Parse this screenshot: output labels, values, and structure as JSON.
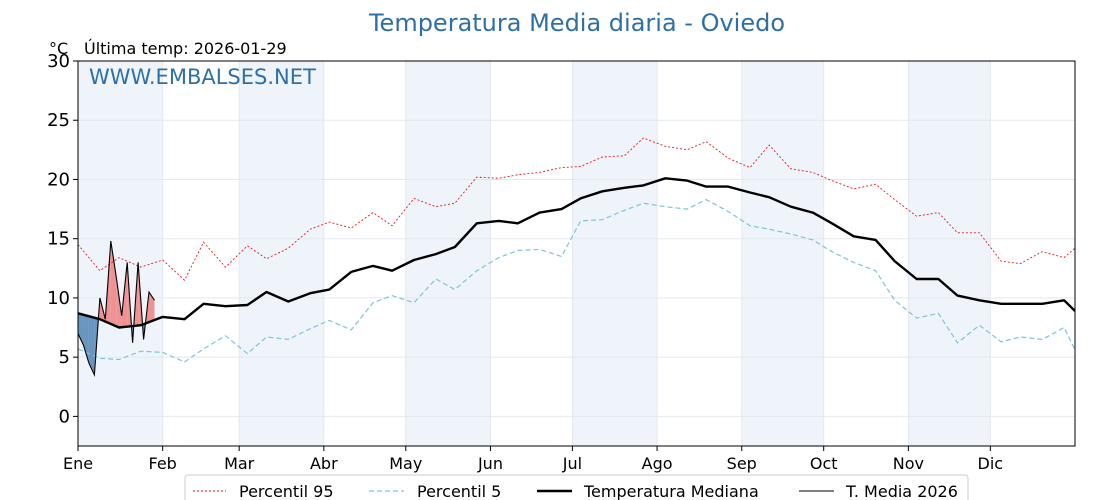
{
  "chart_data": {
    "type": "line",
    "title": "Temperatura Media diaria - Oviedo",
    "unit_label": "°C",
    "last_temp_label": "Última temp: 2026-01-29",
    "watermark": "WWW.EMBALSES.NET",
    "ylim": [
      -2.5,
      30
    ],
    "yticks": [
      0,
      5,
      10,
      15,
      20,
      25,
      30
    ],
    "xlim": [
      0,
      365
    ],
    "month_labels": [
      "Ene",
      "Feb",
      "Mar",
      "Abr",
      "May",
      "Jun",
      "Jul",
      "Ago",
      "Sep",
      "Oct",
      "Nov",
      "Dic"
    ],
    "month_starts": [
      0,
      31,
      59,
      90,
      120,
      151,
      181,
      212,
      243,
      273,
      304,
      334
    ],
    "grid": true,
    "legend_placement": "bottom",
    "colors": {
      "p95": "#e31a1c",
      "p5": "#7fc4d6",
      "median": "#000000",
      "current": "#000000",
      "above_fill": "#f08080",
      "below_fill": "#4f86b5",
      "band": "#eef4fa",
      "title": "#2f6fa7"
    },
    "series": [
      {
        "name": "Percentil 95",
        "x": [
          0,
          8,
          15,
          23,
          31,
          39,
          46,
          54,
          62,
          69,
          77,
          85,
          92,
          100,
          108,
          115,
          123,
          131,
          138,
          146,
          154,
          161,
          169,
          177,
          184,
          192,
          200,
          207,
          215,
          223,
          230,
          238,
          246,
          253,
          261,
          269,
          276,
          284,
          292,
          299,
          307,
          315,
          322,
          330,
          338,
          345,
          353,
          361,
          365
        ],
        "values": [
          14.5,
          12.3,
          13.4,
          12.6,
          13.2,
          11.5,
          14.7,
          12.6,
          14.4,
          13.3,
          14.2,
          15.8,
          16.4,
          15.9,
          17.2,
          16.1,
          18.4,
          17.7,
          18.0,
          20.2,
          20.1,
          20.4,
          20.6,
          21.0,
          21.1,
          21.9,
          22.0,
          23.5,
          22.8,
          22.5,
          23.2,
          21.8,
          21.0,
          22.9,
          20.9,
          20.6,
          19.9,
          19.2,
          19.6,
          18.3,
          16.9,
          17.2,
          15.5,
          15.5,
          13.1,
          12.9,
          13.9,
          13.4,
          14.2
        ]
      },
      {
        "name": "Percentil 5",
        "x": [
          0,
          8,
          15,
          23,
          31,
          39,
          46,
          54,
          62,
          69,
          77,
          85,
          92,
          100,
          108,
          115,
          123,
          131,
          138,
          146,
          154,
          161,
          169,
          177,
          184,
          192,
          200,
          207,
          215,
          223,
          230,
          238,
          246,
          253,
          261,
          269,
          276,
          284,
          292,
          299,
          307,
          315,
          322,
          330,
          338,
          345,
          353,
          361,
          365
        ],
        "values": [
          5.7,
          4.9,
          4.8,
          5.5,
          5.4,
          4.6,
          5.7,
          6.8,
          5.3,
          6.7,
          6.5,
          7.4,
          8.1,
          7.3,
          9.6,
          10.2,
          9.6,
          11.6,
          10.7,
          12.3,
          13.4,
          14.0,
          14.1,
          13.5,
          16.5,
          16.6,
          17.4,
          18.0,
          17.7,
          17.5,
          18.3,
          17.3,
          16.1,
          15.8,
          15.4,
          14.9,
          13.9,
          13.0,
          12.3,
          9.8,
          8.3,
          8.7,
          6.2,
          7.7,
          6.3,
          6.7,
          6.5,
          7.5,
          5.6
        ]
      },
      {
        "name": "Temperatura Mediana",
        "x": [
          0,
          8,
          15,
          23,
          31,
          39,
          46,
          54,
          62,
          69,
          77,
          85,
          92,
          100,
          108,
          115,
          123,
          131,
          138,
          146,
          154,
          161,
          169,
          177,
          184,
          192,
          200,
          207,
          215,
          223,
          230,
          238,
          246,
          253,
          261,
          269,
          276,
          284,
          292,
          299,
          307,
          315,
          322,
          330,
          338,
          345,
          353,
          361,
          365
        ],
        "values": [
          8.7,
          8.2,
          7.5,
          7.7,
          8.4,
          8.2,
          9.5,
          9.3,
          9.4,
          10.5,
          9.7,
          10.4,
          10.7,
          12.2,
          12.7,
          12.3,
          13.2,
          13.7,
          14.3,
          16.3,
          16.5,
          16.3,
          17.2,
          17.5,
          18.4,
          19.0,
          19.3,
          19.5,
          20.1,
          19.9,
          19.4,
          19.4,
          18.9,
          18.5,
          17.7,
          17.2,
          16.3,
          15.2,
          14.9,
          13.1,
          11.6,
          11.6,
          10.2,
          9.8,
          9.5,
          9.5,
          9.5,
          9.8,
          8.9
        ]
      },
      {
        "name": "T. Media 2026",
        "x": [
          0,
          2,
          4,
          6,
          8,
          10,
          12,
          14,
          16,
          18,
          20,
          22,
          24,
          26,
          28
        ],
        "values": [
          7.0,
          6.0,
          4.5,
          3.5,
          10.0,
          8.2,
          14.8,
          11.8,
          8.5,
          13.0,
          6.2,
          13.0,
          6.5,
          10.5,
          9.8
        ]
      }
    ]
  }
}
